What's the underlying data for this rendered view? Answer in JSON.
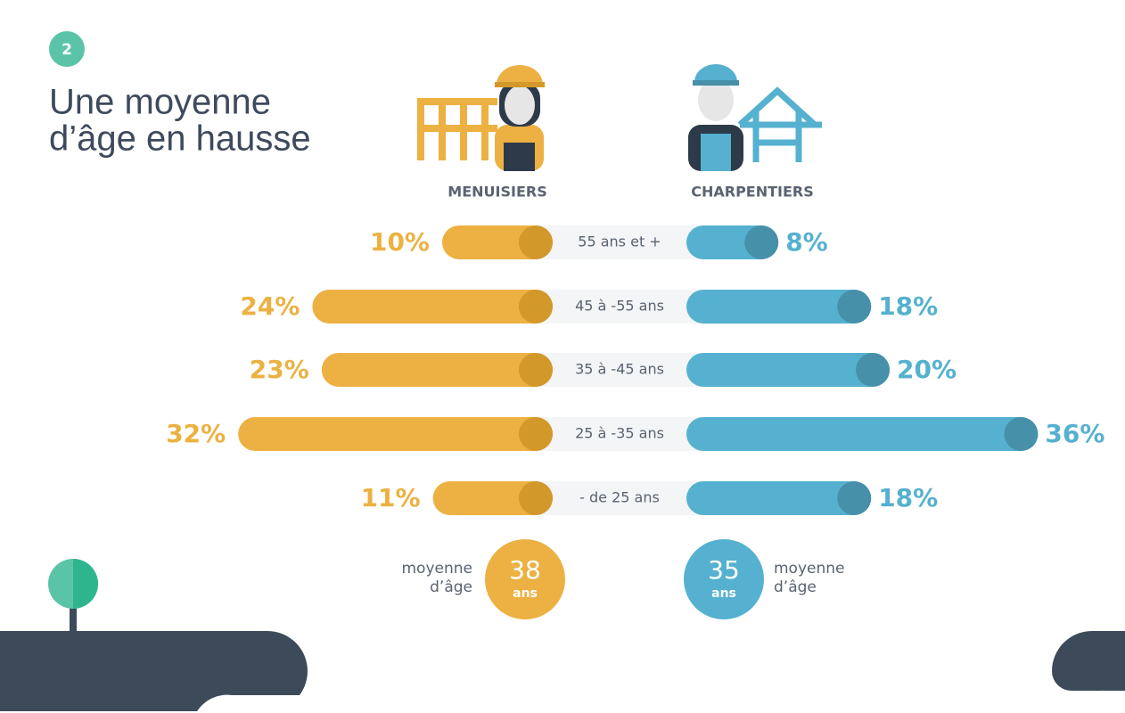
{
  "badge": "2",
  "chart_data": {
    "type": "bar",
    "title_lines": [
      "Une moyenne",
      "d’âge en hausse"
    ],
    "categories": [
      "55 ans et +",
      "45 à -55 ans",
      "35 à -45 ans",
      "25 à -35 ans",
      "- de 25 ans"
    ],
    "series": [
      {
        "name": "MENUISIERS",
        "color": "#ecb142",
        "cap_color": "#d3982a",
        "values": [
          10,
          24,
          23,
          32,
          11
        ],
        "value_labels": [
          "10%",
          "24%",
          "23%",
          "32%",
          "11%"
        ],
        "average": 38,
        "average_unit": "ans",
        "average_label": [
          "moyenne",
          "d’âge"
        ]
      },
      {
        "name": "CHARPENTIERS",
        "color": "#55b1cf",
        "cap_color": "#4690aa",
        "values": [
          8,
          18,
          20,
          36,
          18
        ],
        "value_labels": [
          "8%",
          "18%",
          "20%",
          "36%",
          "18%"
        ],
        "average": 35,
        "average_unit": "ans",
        "average_label": [
          "moyenne",
          "d’âge"
        ]
      }
    ]
  }
}
